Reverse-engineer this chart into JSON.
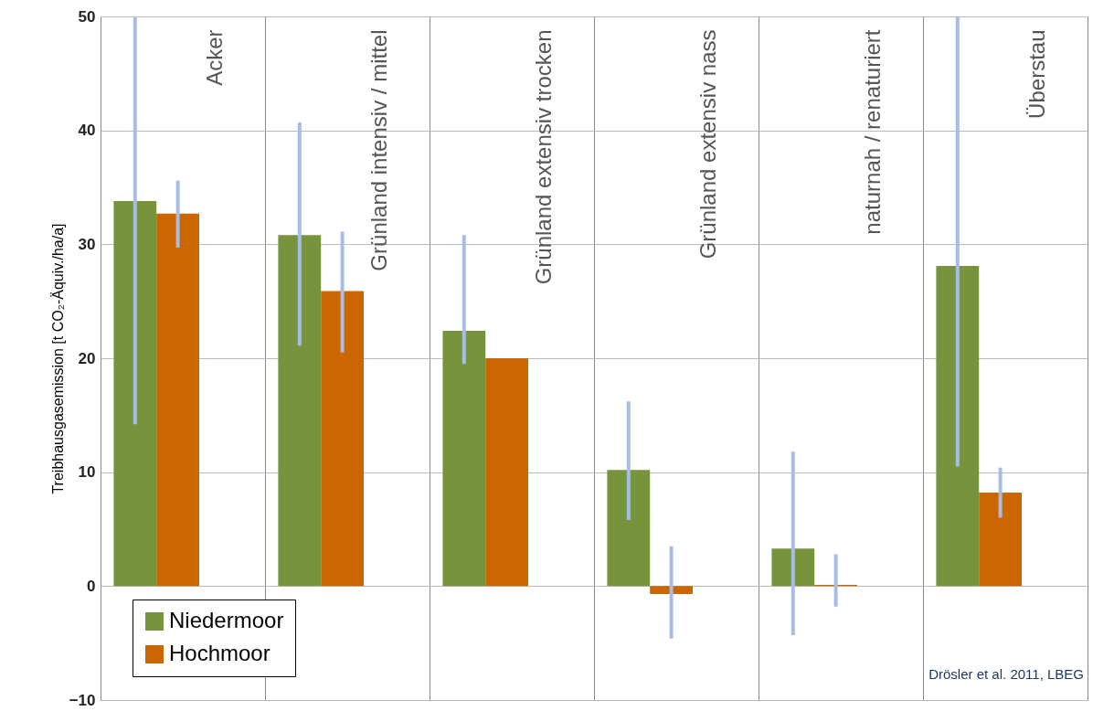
{
  "chart_data": {
    "type": "bar",
    "ylabel": "Treibhausgasemission [t CO₂-Äquiv./ha/a]",
    "categories": [
      "Acker",
      "Grünland intensiv / mittel",
      "Grünland extensiv trocken",
      "Grünland extensiv nass",
      "naturnah / renaturiert",
      "Überstau"
    ],
    "series": [
      {
        "name": "Niedermoor",
        "color": "#77933c",
        "values": [
          33.8,
          30.8,
          22.4,
          10.2,
          3.3,
          28.1
        ],
        "errors": [
          [
            14.2,
            50
          ],
          [
            21.1,
            40.7
          ],
          [
            19.5,
            30.8
          ],
          [
            5.8,
            16.2
          ],
          [
            -4.3,
            11.8
          ],
          [
            10.5,
            50
          ]
        ]
      },
      {
        "name": "Hochmoor",
        "color": "#cc6600",
        "values": [
          32.7,
          25.9,
          20.0,
          -0.7,
          0.1,
          8.2
        ],
        "errors": [
          [
            29.7,
            35.6
          ],
          [
            20.5,
            31.1
          ],
          null,
          [
            -4.6,
            3.5
          ],
          [
            -1.8,
            2.8
          ],
          [
            6.0,
            10.4
          ]
        ]
      }
    ],
    "ylim": [
      -10,
      50
    ],
    "yticks": [
      -10,
      0,
      10,
      20,
      30,
      40,
      50
    ],
    "grid": true,
    "legend": "bottom left",
    "annotations": [
      "Drösler et al. 2011, LBEG"
    ]
  }
}
